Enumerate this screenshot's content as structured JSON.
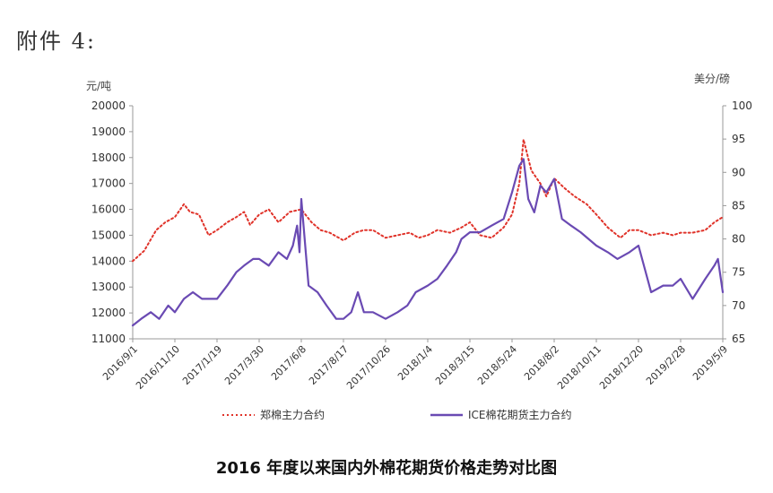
{
  "header": {
    "attachment_label": "附件 4:"
  },
  "caption": "2016 年度以来国内外棉花期货价格走势对比图",
  "chart_data": {
    "type": "line",
    "title": "",
    "left_unit": "元/吨",
    "right_unit": "美分/磅",
    "y_left_range": [
      11000,
      20000
    ],
    "y_left_ticks": [
      "11000",
      "12000",
      "13000",
      "14000",
      "15000",
      "16000",
      "17000",
      "18000",
      "19000",
      "20000"
    ],
    "y_right_range": [
      65,
      100
    ],
    "y_right_ticks": [
      "65",
      "70",
      "75",
      "80",
      "85",
      "90",
      "95",
      "100"
    ],
    "x_tick_labels": [
      "2016/9/1",
      "2016/11/10",
      "2017/1/19",
      "2017/3/30",
      "2017/6/8",
      "2017/8/17",
      "2017/10/26",
      "2018/1/4",
      "2018/3/15",
      "2018/5/24",
      "2018/8/2",
      "2018/10/11",
      "2018/12/20",
      "2019/2/28",
      "2019/5/9"
    ],
    "grid": false,
    "legend_position": "bottom",
    "series": [
      {
        "name": "郑棉主力合约",
        "axis": "left",
        "color": "#e0332a",
        "style": "dotted",
        "x": [
          "2016/9/1",
          "2016/9/20",
          "2016/10/10",
          "2016/10/25",
          "2016/11/10",
          "2016/11/25",
          "2016/12/5",
          "2016/12/20",
          "2017/1/5",
          "2017/1/19",
          "2017/2/5",
          "2017/2/20",
          "2017/3/5",
          "2017/3/15",
          "2017/3/30",
          "2017/4/15",
          "2017/5/1",
          "2017/5/20",
          "2017/6/8",
          "2017/6/25",
          "2017/7/10",
          "2017/7/25",
          "2017/8/17",
          "2017/9/5",
          "2017/9/20",
          "2017/10/5",
          "2017/10/26",
          "2017/11/15",
          "2017/12/5",
          "2017/12/20",
          "2018/1/4",
          "2018/1/20",
          "2018/2/10",
          "2018/3/1",
          "2018/3/15",
          "2018/4/1",
          "2018/4/20",
          "2018/5/10",
          "2018/5/24",
          "2018/6/5",
          "2018/6/12",
          "2018/6/25",
          "2018/7/10",
          "2018/7/20",
          "2018/8/2",
          "2018/8/20",
          "2018/9/5",
          "2018/9/25",
          "2018/10/11",
          "2018/10/30",
          "2018/11/20",
          "2018/12/5",
          "2018/12/20",
          "2019/1/10",
          "2019/1/30",
          "2019/2/15",
          "2019/2/28",
          "2019/3/20",
          "2019/4/10",
          "2019/4/25",
          "2019/5/9"
        ],
        "y": [
          14000,
          14400,
          15200,
          15500,
          15700,
          16200,
          15900,
          15800,
          15000,
          15200,
          15500,
          15700,
          15900,
          15400,
          15800,
          16000,
          15500,
          15900,
          16000,
          15500,
          15200,
          15100,
          14800,
          15100,
          15200,
          15200,
          14900,
          15000,
          15100,
          14900,
          15000,
          15200,
          15100,
          15300,
          15500,
          15000,
          14900,
          15300,
          15800,
          17000,
          18700,
          17500,
          17000,
          16500,
          17200,
          16800,
          16500,
          16200,
          15800,
          15300,
          14900,
          15200,
          15200,
          15000,
          15100,
          15000,
          15100,
          15100,
          15200,
          15500,
          15700
        ]
      },
      {
        "name": "ICE棉花期货主力合约",
        "axis": "right",
        "color": "#6a4ab3",
        "style": "solid",
        "x": [
          "2016/9/1",
          "2016/9/15",
          "2016/10/1",
          "2016/10/15",
          "2016/10/30",
          "2016/11/10",
          "2016/11/25",
          "2016/12/10",
          "2016/12/25",
          "2017/1/19",
          "2017/2/5",
          "2017/2/20",
          "2017/3/5",
          "2017/3/20",
          "2017/3/30",
          "2017/4/15",
          "2017/5/1",
          "2017/5/15",
          "2017/5/25",
          "2017/6/1",
          "2017/6/5",
          "2017/6/8",
          "2017/6/20",
          "2017/7/5",
          "2017/7/20",
          "2017/8/5",
          "2017/8/17",
          "2017/8/30",
          "2017/9/10",
          "2017/9/20",
          "2017/10/5",
          "2017/10/26",
          "2017/11/15",
          "2017/12/1",
          "2017/12/15",
          "2018/1/4",
          "2018/1/20",
          "2018/2/5",
          "2018/2/20",
          "2018/3/1",
          "2018/3/15",
          "2018/4/1",
          "2018/4/20",
          "2018/5/10",
          "2018/5/24",
          "2018/6/5",
          "2018/6/12",
          "2018/6/20",
          "2018/6/30",
          "2018/7/10",
          "2018/7/20",
          "2018/8/2",
          "2018/8/15",
          "2018/8/30",
          "2018/9/15",
          "2018/10/11",
          "2018/10/30",
          "2018/11/15",
          "2018/12/5",
          "2018/12/20",
          "2019/1/10",
          "2019/1/30",
          "2019/2/15",
          "2019/2/28",
          "2019/3/20",
          "2019/4/10",
          "2019/4/25",
          "2019/5/1",
          "2019/5/9"
        ],
        "y": [
          67,
          68,
          69,
          68,
          70,
          69,
          71,
          72,
          71,
          71,
          73,
          75,
          76,
          77,
          77,
          76,
          78,
          77,
          79,
          82,
          78,
          86,
          73,
          72,
          70,
          68,
          68,
          69,
          72,
          69,
          69,
          68,
          69,
          70,
          72,
          73,
          74,
          76,
          78,
          80,
          81,
          81,
          82,
          83,
          87,
          91,
          92,
          86,
          84,
          88,
          87,
          89,
          83,
          82,
          81,
          79,
          78,
          77,
          78,
          79,
          72,
          73,
          73,
          74,
          71,
          74,
          76,
          77,
          72
        ]
      }
    ]
  }
}
